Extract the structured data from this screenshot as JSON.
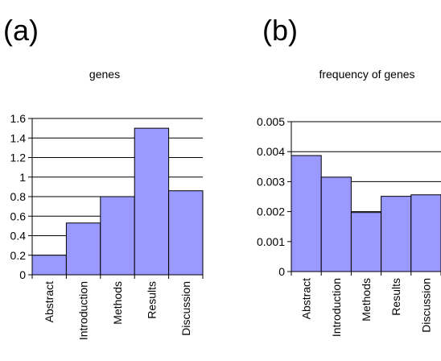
{
  "panel_labels": [
    "(a)",
    "(b)"
  ],
  "chart_data": [
    {
      "type": "bar",
      "title": "genes",
      "categories": [
        "Abstract",
        "Introduction",
        "Methods",
        "Results",
        "Discussion"
      ],
      "values": [
        0.2,
        0.53,
        0.8,
        1.5,
        0.86
      ],
      "yticks": [
        "0",
        "0.2",
        "0.4",
        "0.6",
        "0.8",
        "1",
        "1.2",
        "1.4",
        "1.6"
      ],
      "ylim": [
        0,
        1.6
      ],
      "grid": true,
      "bar_color": "#9999ff"
    },
    {
      "type": "bar",
      "title": "frequency of genes",
      "categories": [
        "Abstract",
        "Introduction",
        "Methods",
        "Results",
        "Discussion"
      ],
      "values": [
        0.00387,
        0.00315,
        0.00197,
        0.00251,
        0.00256
      ],
      "yticks": [
        "0",
        "0.001",
        "0.002",
        "0.003",
        "0.004",
        "0.005"
      ],
      "ylim": [
        0,
        0.005
      ],
      "grid": true,
      "bar_color": "#9999ff"
    }
  ]
}
